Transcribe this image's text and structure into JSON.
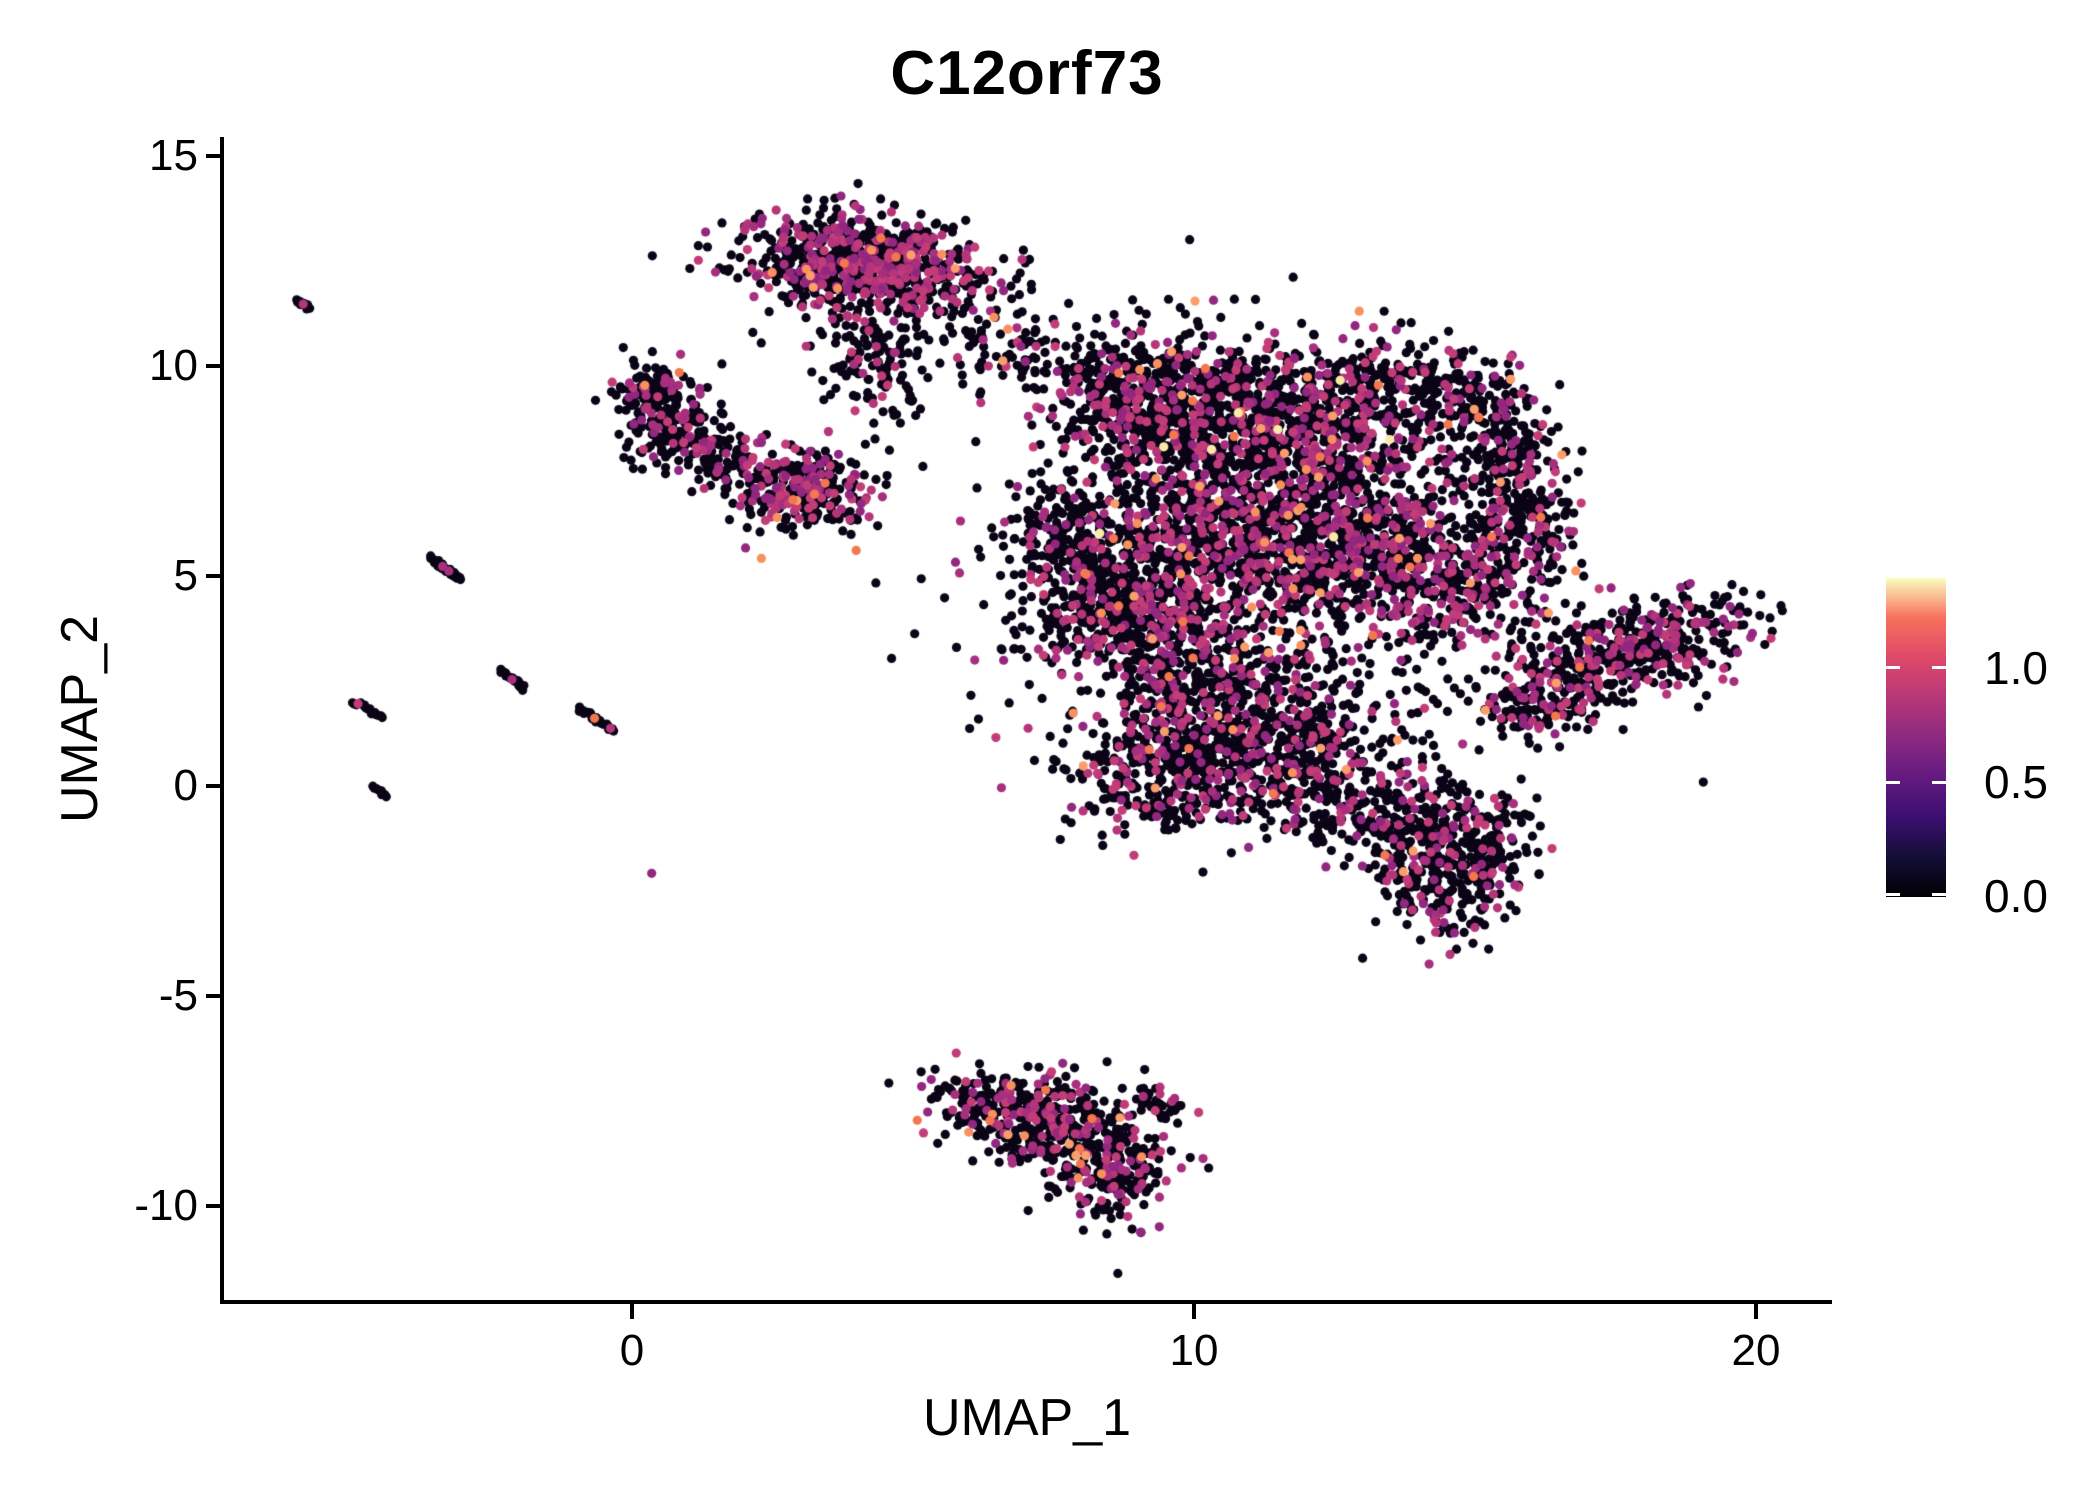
{
  "chart_data": {
    "type": "scatter",
    "title": "C12orf73",
    "xlabel": "UMAP_1",
    "ylabel": "UMAP_2",
    "xlim": [
      -7.3,
      21.3
    ],
    "ylim": [
      -12.2,
      15.5
    ],
    "grid": false,
    "legend_position": "right",
    "x_ticks": [
      {
        "v": 0,
        "label": "0"
      },
      {
        "v": 10,
        "label": "10"
      },
      {
        "v": 20,
        "label": "20"
      }
    ],
    "y_ticks": [
      {
        "v": 15,
        "label": "15"
      },
      {
        "v": 10,
        "label": "10"
      },
      {
        "v": 5,
        "label": "5"
      },
      {
        "v": 0,
        "label": "0"
      },
      {
        "v": -5,
        "label": "-5"
      },
      {
        "v": -10,
        "label": "-10"
      }
    ],
    "colorbar": {
      "title": "",
      "colormap": "magma",
      "domain": [
        0.0,
        1.39
      ],
      "ticks": [
        {
          "v": 1.0,
          "label": "1.0"
        },
        {
          "v": 0.5,
          "label": "0.5"
        },
        {
          "v": 0.0,
          "label": "0.0"
        }
      ],
      "gradient_stops": [
        "#000004",
        "#140e36",
        "#3b0f70",
        "#641a80",
        "#8c2981",
        "#b73779",
        "#de4968",
        "#f7705c",
        "#fcfdbf"
      ]
    },
    "point_style": {
      "radius_px": 4.6,
      "zero_color": "#0a0416",
      "magenta_shades": [
        "#92277f",
        "#a62f7e",
        "#b53579",
        "#c23d77"
      ],
      "orange_shades": [
        "#f3774f",
        "#f8915f",
        "#fa9e6b"
      ],
      "cream_color": "#fbe9a8"
    },
    "clusters": [
      {
        "name": "top-main",
        "cx": 4.15,
        "cy": 12.4,
        "sx": 1.05,
        "sy": 0.55,
        "rot": -8,
        "n": 850,
        "fm": 0.36,
        "fo": 0.02,
        "fc": 0
      },
      {
        "name": "top-tail",
        "cx": 4.3,
        "cy": 10.1,
        "sx": 0.45,
        "sy": 0.85,
        "rot": 15,
        "n": 130,
        "fm": 0.15,
        "fo": 0.005,
        "fc": 0
      },
      {
        "name": "top-bridge",
        "cx": 6.7,
        "cy": 10.6,
        "sx": 0.8,
        "sy": 0.6,
        "rot": -20,
        "n": 90,
        "fm": 0.12,
        "fo": 0.01,
        "fc": 0
      },
      {
        "name": "left-hook-a",
        "cx": 0.35,
        "cy": 9.35,
        "sx": 0.42,
        "sy": 0.38,
        "rot": 0,
        "n": 120,
        "fm": 0.18,
        "fo": 0.02,
        "fc": 0
      },
      {
        "name": "left-hook-b",
        "cx": 0.8,
        "cy": 8.45,
        "sx": 0.5,
        "sy": 0.42,
        "rot": 0,
        "n": 140,
        "fm": 0.18,
        "fo": 0.005,
        "fc": 0
      },
      {
        "name": "left-hook-c",
        "cx": 1.45,
        "cy": 7.75,
        "sx": 0.4,
        "sy": 0.28,
        "rot": -30,
        "n": 70,
        "fm": 0.2,
        "fo": 0.01,
        "fc": 0
      },
      {
        "name": "mid-blob",
        "cx": 3.0,
        "cy": 7.05,
        "sx": 0.62,
        "sy": 0.48,
        "rot": -15,
        "n": 300,
        "fm": 0.38,
        "fo": 0.015,
        "fc": 0
      },
      {
        "name": "main-nw",
        "cx": 9.3,
        "cy": 9.2,
        "sx": 1.05,
        "sy": 0.85,
        "rot": -20,
        "n": 650,
        "fm": 0.22,
        "fo": 0.015,
        "fc": 0.002
      },
      {
        "name": "main-ne",
        "cx": 12.0,
        "cy": 8.7,
        "sx": 1.25,
        "sy": 0.95,
        "rot": 0,
        "n": 800,
        "fm": 0.22,
        "fo": 0.02,
        "fc": 0.002
      },
      {
        "name": "main-center",
        "cx": 10.4,
        "cy": 6.1,
        "sx": 1.35,
        "sy": 1.05,
        "rot": 0,
        "n": 850,
        "fm": 0.26,
        "fo": 0.02,
        "fc": 0.003
      },
      {
        "name": "main-center-right",
        "cx": 12.9,
        "cy": 5.7,
        "sx": 1.05,
        "sy": 0.95,
        "rot": 0,
        "n": 650,
        "fm": 0.26,
        "fo": 0.015,
        "fc": 0
      },
      {
        "name": "main-left-arm",
        "cx": 7.8,
        "cy": 5.9,
        "sx": 0.6,
        "sy": 0.85,
        "rot": 10,
        "n": 220,
        "fm": 0.2,
        "fo": 0.01,
        "fc": 0
      },
      {
        "name": "main-center-left",
        "cx": 9.0,
        "cy": 4.1,
        "sx": 1.1,
        "sy": 0.95,
        "rot": 0,
        "n": 500,
        "fm": 0.24,
        "fo": 0.015,
        "fc": 0
      },
      {
        "name": "main-lower-center",
        "cx": 10.6,
        "cy": 2.1,
        "sx": 1.15,
        "sy": 1.0,
        "rot": 0,
        "n": 520,
        "fm": 0.22,
        "fo": 0.015,
        "fc": 0
      },
      {
        "name": "main-bottom-left",
        "cx": 9.4,
        "cy": 0.3,
        "sx": 0.85,
        "sy": 0.8,
        "rot": 0,
        "n": 330,
        "fm": 0.22,
        "fo": 0.01,
        "fc": 0
      },
      {
        "name": "main-bottom-mid",
        "cx": 11.8,
        "cy": 0.6,
        "sx": 1.0,
        "sy": 0.85,
        "rot": 0,
        "n": 360,
        "fm": 0.2,
        "fo": 0.01,
        "fc": 0
      },
      {
        "name": "main-right-inner",
        "cx": 14.7,
        "cy": 4.7,
        "sx": 0.85,
        "sy": 0.85,
        "rot": 0,
        "n": 330,
        "fm": 0.26,
        "fo": 0.015,
        "fc": 0
      },
      {
        "name": "crescent-top",
        "cx": 14.5,
        "cy": 9.4,
        "sx": 0.8,
        "sy": 0.5,
        "rot": -25,
        "n": 170,
        "fm": 0.2,
        "fo": 0.01,
        "fc": 0
      },
      {
        "name": "crescent-mid",
        "cx": 15.6,
        "cy": 7.9,
        "sx": 0.45,
        "sy": 0.8,
        "rot": 10,
        "n": 190,
        "fm": 0.2,
        "fo": 0.01,
        "fc": 0
      },
      {
        "name": "crescent-low",
        "cx": 15.9,
        "cy": 6.3,
        "sx": 0.45,
        "sy": 0.7,
        "rot": 0,
        "n": 160,
        "fm": 0.22,
        "fo": 0.01,
        "fc": 0
      },
      {
        "name": "main-sparse-halo",
        "cx": 11.0,
        "cy": 5.0,
        "sx": 3.0,
        "sy": 2.6,
        "rot": 0,
        "n": 220,
        "fm": 0.12,
        "fo": 0.005,
        "fc": 0
      },
      {
        "name": "ext-a",
        "cx": 13.9,
        "cy": -0.9,
        "sx": 0.7,
        "sy": 0.7,
        "rot": 0,
        "n": 250,
        "fm": 0.24,
        "fo": 0.02,
        "fc": 0
      },
      {
        "name": "ext-b",
        "cx": 14.5,
        "cy": -2.4,
        "sx": 0.6,
        "sy": 0.65,
        "rot": 0,
        "n": 180,
        "fm": 0.24,
        "fo": 0.02,
        "fc": 0
      },
      {
        "name": "ext-c",
        "cx": 15.3,
        "cy": -1.2,
        "sx": 0.4,
        "sy": 0.6,
        "rot": 0,
        "n": 100,
        "fm": 0.22,
        "fo": 0.01,
        "fc": 0
      },
      {
        "name": "ext-chain",
        "cx": 12.6,
        "cy": -0.4,
        "sx": 0.8,
        "sy": 0.45,
        "rot": -15,
        "n": 80,
        "fm": 0.18,
        "fo": 0.0,
        "fc": 0
      },
      {
        "name": "diag-right",
        "cx": 17.6,
        "cy": 3.05,
        "sx": 1.2,
        "sy": 0.5,
        "rot": 27,
        "n": 560,
        "fm": 0.28,
        "fo": 0.012,
        "fc": 0
      },
      {
        "name": "diag-tail",
        "cx": 16.0,
        "cy": 1.7,
        "sx": 0.4,
        "sy": 0.35,
        "rot": 0,
        "n": 60,
        "fm": 0.2,
        "fo": 0.0,
        "fc": 0
      },
      {
        "name": "bottom-a",
        "cx": 6.8,
        "cy": -7.65,
        "sx": 0.8,
        "sy": 0.45,
        "rot": -10,
        "n": 230,
        "fm": 0.26,
        "fo": 0.03,
        "fc": 0
      },
      {
        "name": "bottom-b",
        "cx": 7.9,
        "cy": -8.4,
        "sx": 0.85,
        "sy": 0.6,
        "rot": -20,
        "n": 260,
        "fm": 0.26,
        "fo": 0.03,
        "fc": 0
      },
      {
        "name": "bottom-c",
        "cx": 8.55,
        "cy": -9.4,
        "sx": 0.45,
        "sy": 0.55,
        "rot": 0,
        "n": 130,
        "fm": 0.22,
        "fo": 0.04,
        "fc": 0
      },
      {
        "name": "bottom-tail",
        "cx": 9.25,
        "cy": -7.5,
        "sx": 0.3,
        "sy": 0.2,
        "rot": -30,
        "n": 30,
        "fm": 0.15,
        "fo": 0.0,
        "fc": 0
      }
    ],
    "streaks": [
      {
        "name": "streak-far-left-top",
        "x1": -5.95,
        "y1": 11.6,
        "x2": -5.75,
        "y2": 11.35,
        "n": 9,
        "magenta_at": [
          0.5
        ],
        "orange_at": []
      },
      {
        "name": "streak-a",
        "x1": -3.6,
        "y1": 5.45,
        "x2": -3.05,
        "y2": 4.92,
        "n": 22,
        "magenta_at": [
          0.42,
          0.62
        ],
        "orange_at": []
      },
      {
        "name": "streak-b",
        "x1": -2.35,
        "y1": 2.75,
        "x2": -1.92,
        "y2": 2.32,
        "n": 16,
        "magenta_at": [
          0.5
        ],
        "orange_at": []
      },
      {
        "name": "streak-c",
        "x1": -4.95,
        "y1": 2.02,
        "x2": -4.45,
        "y2": 1.62,
        "n": 16,
        "magenta_at": [
          0.15
        ],
        "orange_at": []
      },
      {
        "name": "streak-d",
        "x1": -0.95,
        "y1": 1.85,
        "x2": -0.32,
        "y2": 1.32,
        "n": 18,
        "magenta_at": [
          0.9
        ],
        "orange_at": [
          0.45
        ]
      },
      {
        "name": "streak-e",
        "x1": -4.62,
        "y1": -0.02,
        "x2": -4.35,
        "y2": -0.22,
        "n": 8,
        "magenta_at": [],
        "orange_at": []
      }
    ],
    "singles": [
      {
        "x": 0.35,
        "y": -2.08,
        "color": "magenta"
      },
      {
        "x": 2.15,
        "y": 10.8,
        "color": "zero"
      },
      {
        "x": 2.3,
        "y": 10.55,
        "color": "zero"
      },
      {
        "x": 1.6,
        "y": 10.05,
        "color": "zero"
      },
      {
        "x": 5.55,
        "y": 11.3,
        "color": "zero"
      },
      {
        "x": 4.95,
        "y": 9.3,
        "color": "zero"
      },
      {
        "x": 2.05,
        "y": 6.15,
        "color": "zero"
      },
      {
        "x": 16.9,
        "y": 5.3,
        "color": "zero"
      },
      {
        "x": 13.0,
        "y": -4.1,
        "color": "zero"
      }
    ]
  }
}
